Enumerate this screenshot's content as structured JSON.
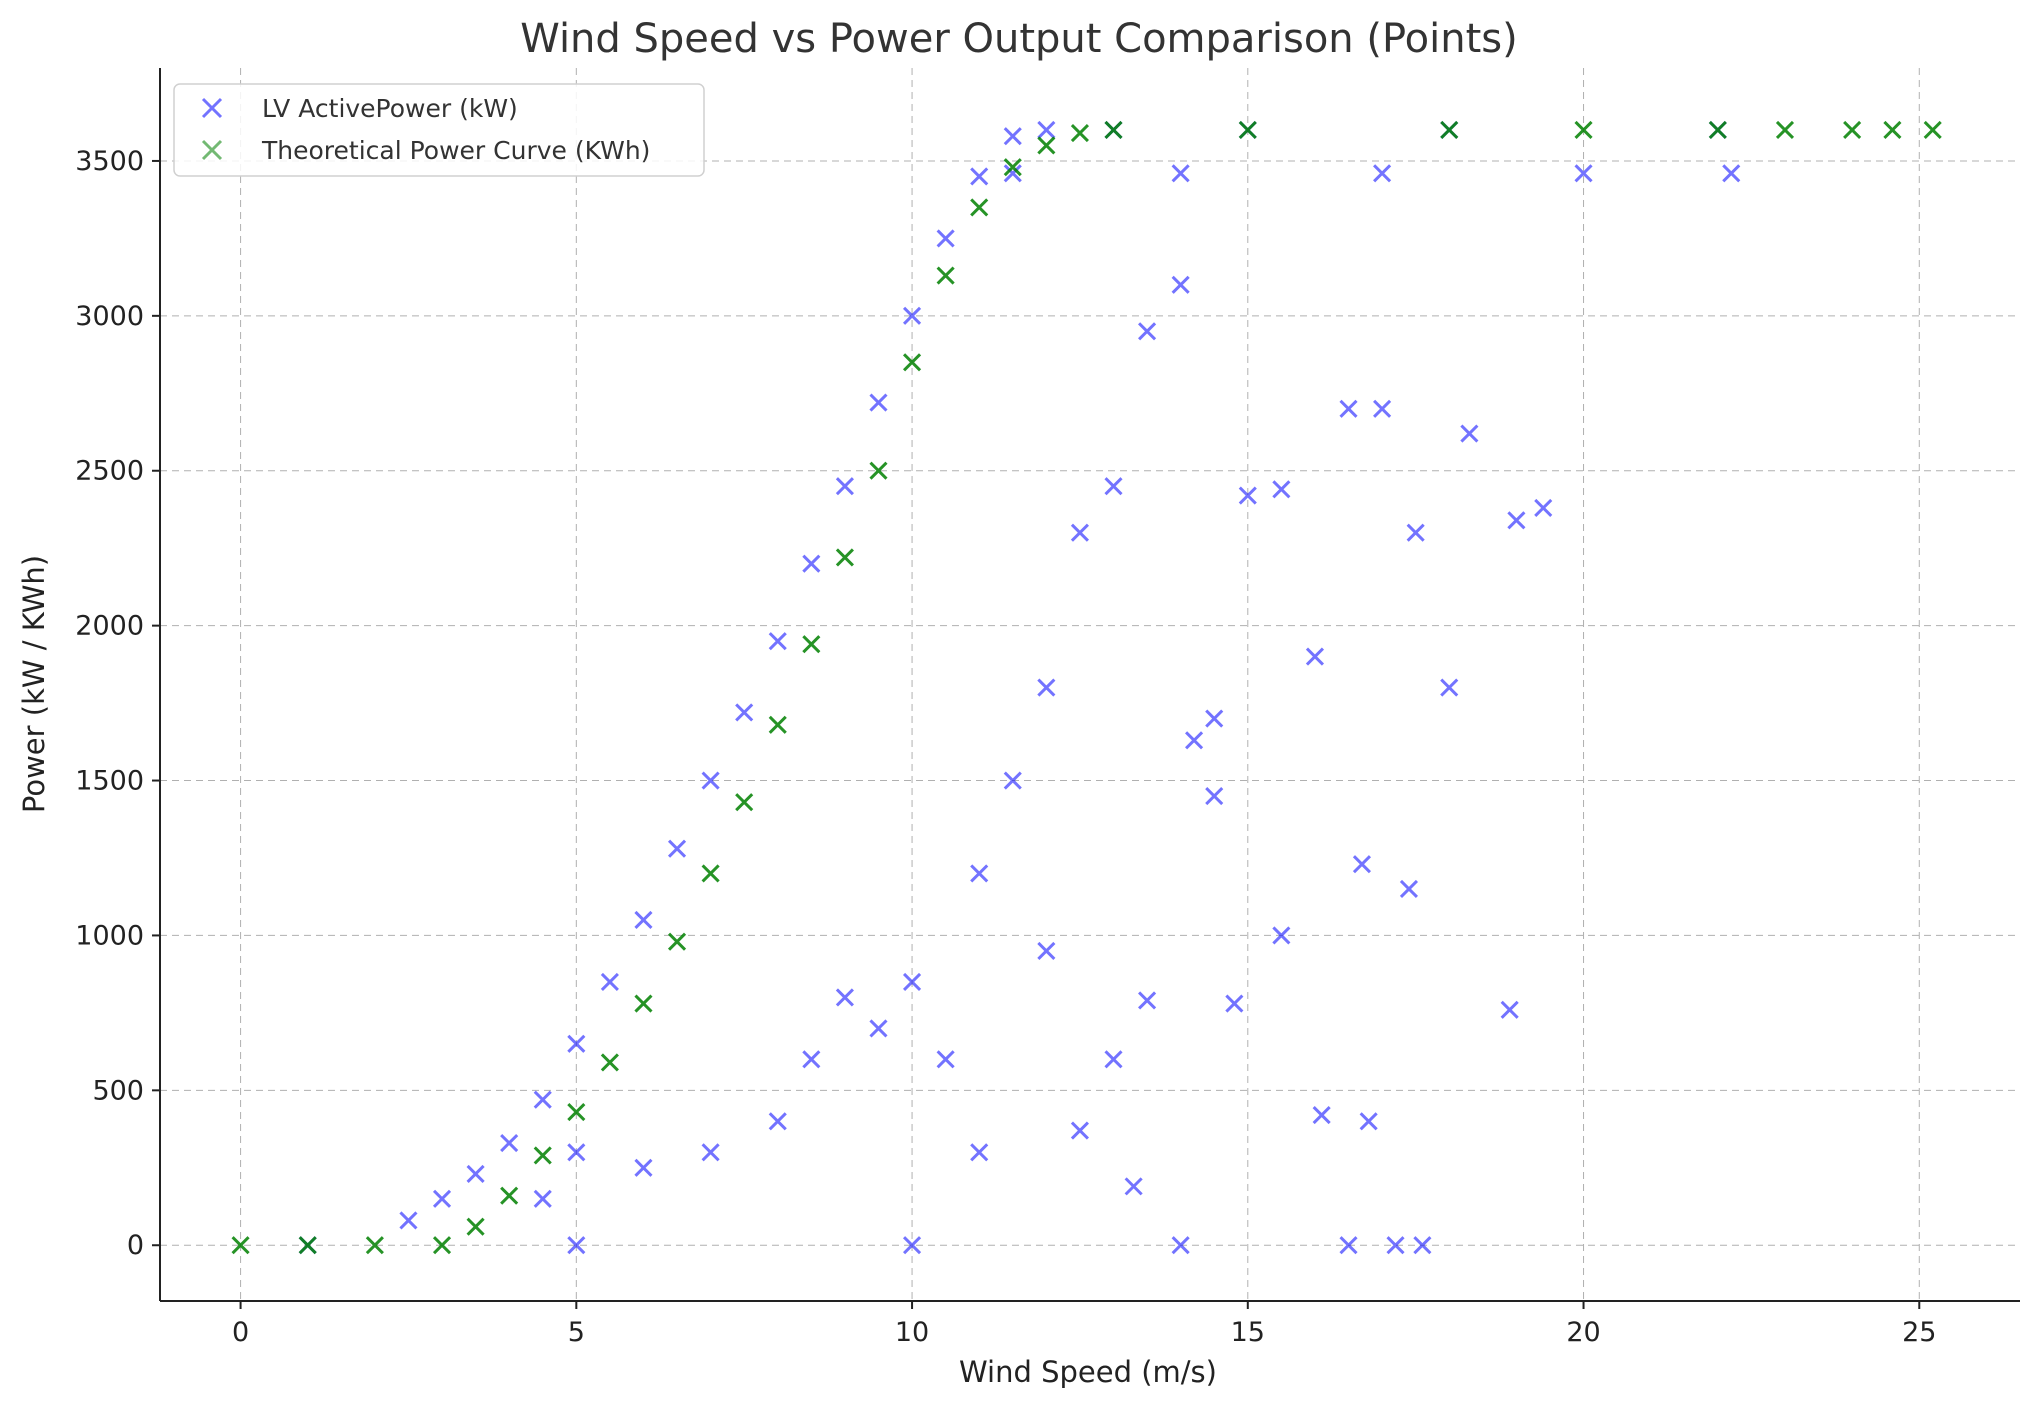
{
  "chart_data": {
    "type": "scatter",
    "title": "Wind Speed vs Power Output Comparison (Points)",
    "xlabel": "Wind Speed (m/s)",
    "ylabel": "Power (kW / KWh)",
    "xlim": [
      -1.2,
      26.5
    ],
    "ylim": [
      -180,
      3800
    ],
    "xticks": [
      0,
      5,
      10,
      15,
      20,
      25
    ],
    "yticks": [
      0,
      500,
      1000,
      1500,
      2000,
      2500,
      3000,
      3500
    ],
    "grid": true,
    "legend_position": "top-left",
    "marker": "x",
    "series": [
      {
        "name": "LV ActivePower (kW)",
        "color": "#0000ff",
        "points": [
          [
            2.5,
            80
          ],
          [
            3.0,
            150
          ],
          [
            3.5,
            230
          ],
          [
            4.0,
            330
          ],
          [
            4.5,
            470
          ],
          [
            5.0,
            650
          ],
          [
            5.5,
            850
          ],
          [
            6.0,
            1050
          ],
          [
            6.5,
            1280
          ],
          [
            7.0,
            1500
          ],
          [
            7.5,
            1720
          ],
          [
            8.0,
            1950
          ],
          [
            8.5,
            2200
          ],
          [
            9.0,
            2450
          ],
          [
            9.5,
            2720
          ],
          [
            10.0,
            3000
          ],
          [
            10.5,
            3250
          ],
          [
            11.0,
            3450
          ],
          [
            11.5,
            3580
          ],
          [
            12.0,
            3600
          ],
          [
            13.0,
            3600
          ],
          [
            15.0,
            3600
          ],
          [
            18.0,
            3600
          ],
          [
            22.0,
            3600
          ],
          [
            11.5,
            3460
          ],
          [
            14.0,
            3460
          ],
          [
            17.0,
            3460
          ],
          [
            20.0,
            3460
          ],
          [
            22.2,
            3460
          ],
          [
            1.0,
            0
          ],
          [
            5.0,
            0
          ],
          [
            10.0,
            0
          ],
          [
            14.0,
            0
          ],
          [
            16.5,
            0
          ],
          [
            17.2,
            0
          ],
          [
            17.6,
            0
          ],
          [
            4.5,
            150
          ],
          [
            5.0,
            300
          ],
          [
            6.0,
            250
          ],
          [
            7.0,
            300
          ],
          [
            8.0,
            400
          ],
          [
            8.5,
            600
          ],
          [
            9.0,
            800
          ],
          [
            9.5,
            700
          ],
          [
            10.0,
            850
          ],
          [
            10.5,
            600
          ],
          [
            11.0,
            1200
          ],
          [
            11.5,
            1500
          ],
          [
            12.0,
            1800
          ],
          [
            12.5,
            2300
          ],
          [
            13.0,
            2450
          ],
          [
            13.5,
            2950
          ],
          [
            14.0,
            3100
          ],
          [
            14.2,
            1630
          ],
          [
            14.5,
            1700
          ],
          [
            14.5,
            1450
          ],
          [
            15.0,
            2420
          ],
          [
            15.5,
            2440
          ],
          [
            16.0,
            1900
          ],
          [
            16.5,
            2700
          ],
          [
            17.0,
            2700
          ],
          [
            17.5,
            2300
          ],
          [
            18.0,
            1800
          ],
          [
            18.3,
            2620
          ],
          [
            19.0,
            2340
          ],
          [
            19.4,
            2380
          ],
          [
            18.9,
            760
          ],
          [
            17.4,
            1150
          ],
          [
            16.7,
            1230
          ],
          [
            16.8,
            400
          ],
          [
            16.1,
            420
          ],
          [
            15.5,
            1000
          ],
          [
            14.8,
            780
          ],
          [
            13.5,
            790
          ],
          [
            13.3,
            190
          ],
          [
            12.5,
            370
          ],
          [
            13.0,
            600
          ],
          [
            12.0,
            950
          ],
          [
            11.0,
            300
          ]
        ]
      },
      {
        "name": "Theoretical Power Curve (KWh)",
        "color": "#008000",
        "points": [
          [
            0,
            0
          ],
          [
            1,
            0
          ],
          [
            2,
            0
          ],
          [
            3,
            0
          ],
          [
            3.5,
            60
          ],
          [
            4.0,
            160
          ],
          [
            4.5,
            290
          ],
          [
            5.0,
            430
          ],
          [
            5.5,
            590
          ],
          [
            6.0,
            780
          ],
          [
            6.5,
            980
          ],
          [
            7.0,
            1200
          ],
          [
            7.5,
            1430
          ],
          [
            8.0,
            1680
          ],
          [
            8.5,
            1940
          ],
          [
            9.0,
            2220
          ],
          [
            9.5,
            2500
          ],
          [
            10.0,
            2850
          ],
          [
            10.5,
            3130
          ],
          [
            11.0,
            3350
          ],
          [
            11.5,
            3480
          ],
          [
            12.0,
            3550
          ],
          [
            12.5,
            3590
          ],
          [
            13.0,
            3600
          ],
          [
            15.0,
            3600
          ],
          [
            18.0,
            3600
          ],
          [
            20.0,
            3600
          ],
          [
            22.0,
            3600
          ],
          [
            23.0,
            3600
          ],
          [
            24.0,
            3600
          ],
          [
            24.6,
            3600
          ],
          [
            25.2,
            3600
          ]
        ]
      }
    ]
  }
}
